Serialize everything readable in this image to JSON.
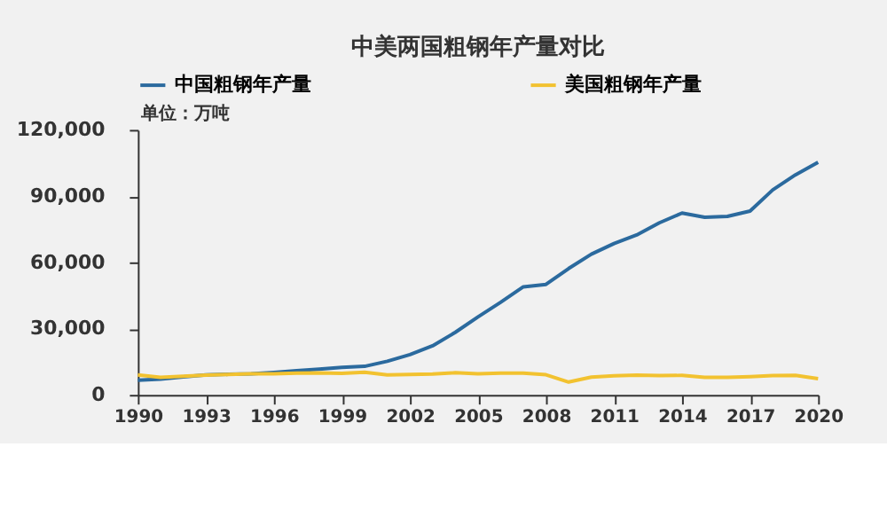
{
  "chart_data": {
    "type": "line",
    "title": "中美两国粗钢年产量对比",
    "annotations": [
      "单位：万吨"
    ],
    "x": [
      1990,
      1991,
      1992,
      1993,
      1994,
      1995,
      1996,
      1997,
      1998,
      1999,
      2000,
      2001,
      2002,
      2003,
      2004,
      2005,
      2006,
      2007,
      2008,
      2009,
      2010,
      2011,
      2012,
      2013,
      2014,
      2015,
      2016,
      2017,
      2018,
      2019,
      2020
    ],
    "series": [
      {
        "name": "中国粗钢年产量",
        "color": "#2b6a9e",
        "values": [
          6600,
          7100,
          8100,
          9000,
          9300,
          9500,
          10100,
          10900,
          11600,
          12400,
          12900,
          15200,
          18200,
          22200,
          28300,
          35300,
          41900,
          48900,
          50000,
          57200,
          63700,
          68500,
          72400,
          77900,
          82300,
          80400,
          80800,
          83200,
          92800,
          99600,
          105300
        ]
      },
      {
        "name": "美国粗钢年产量",
        "color": "#f2c230",
        "values": [
          9000,
          7900,
          8400,
          8900,
          9200,
          9500,
          9500,
          9800,
          9900,
          9700,
          10200,
          9000,
          9200,
          9400,
          10000,
          9500,
          9800,
          9800,
          9100,
          5800,
          8000,
          8600,
          8900,
          8700,
          8800,
          7900,
          7900,
          8200,
          8700,
          8800,
          7300
        ]
      }
    ],
    "xlim": [
      1990,
      2020
    ],
    "xticks": [
      1990,
      1993,
      1996,
      1999,
      2002,
      2005,
      2008,
      2011,
      2014,
      2017,
      2020
    ],
    "ylim": [
      0,
      120000
    ],
    "yticks": [
      0,
      {
        "value": 30000,
        "label": "30,000"
      },
      {
        "value": 60000,
        "label": "60,000"
      },
      {
        "value": 90000,
        "label": "90,000"
      },
      {
        "value": 120000,
        "label": "120,000"
      }
    ],
    "grid": false,
    "legend": "top",
    "marker": "none",
    "line_style": "solid"
  }
}
